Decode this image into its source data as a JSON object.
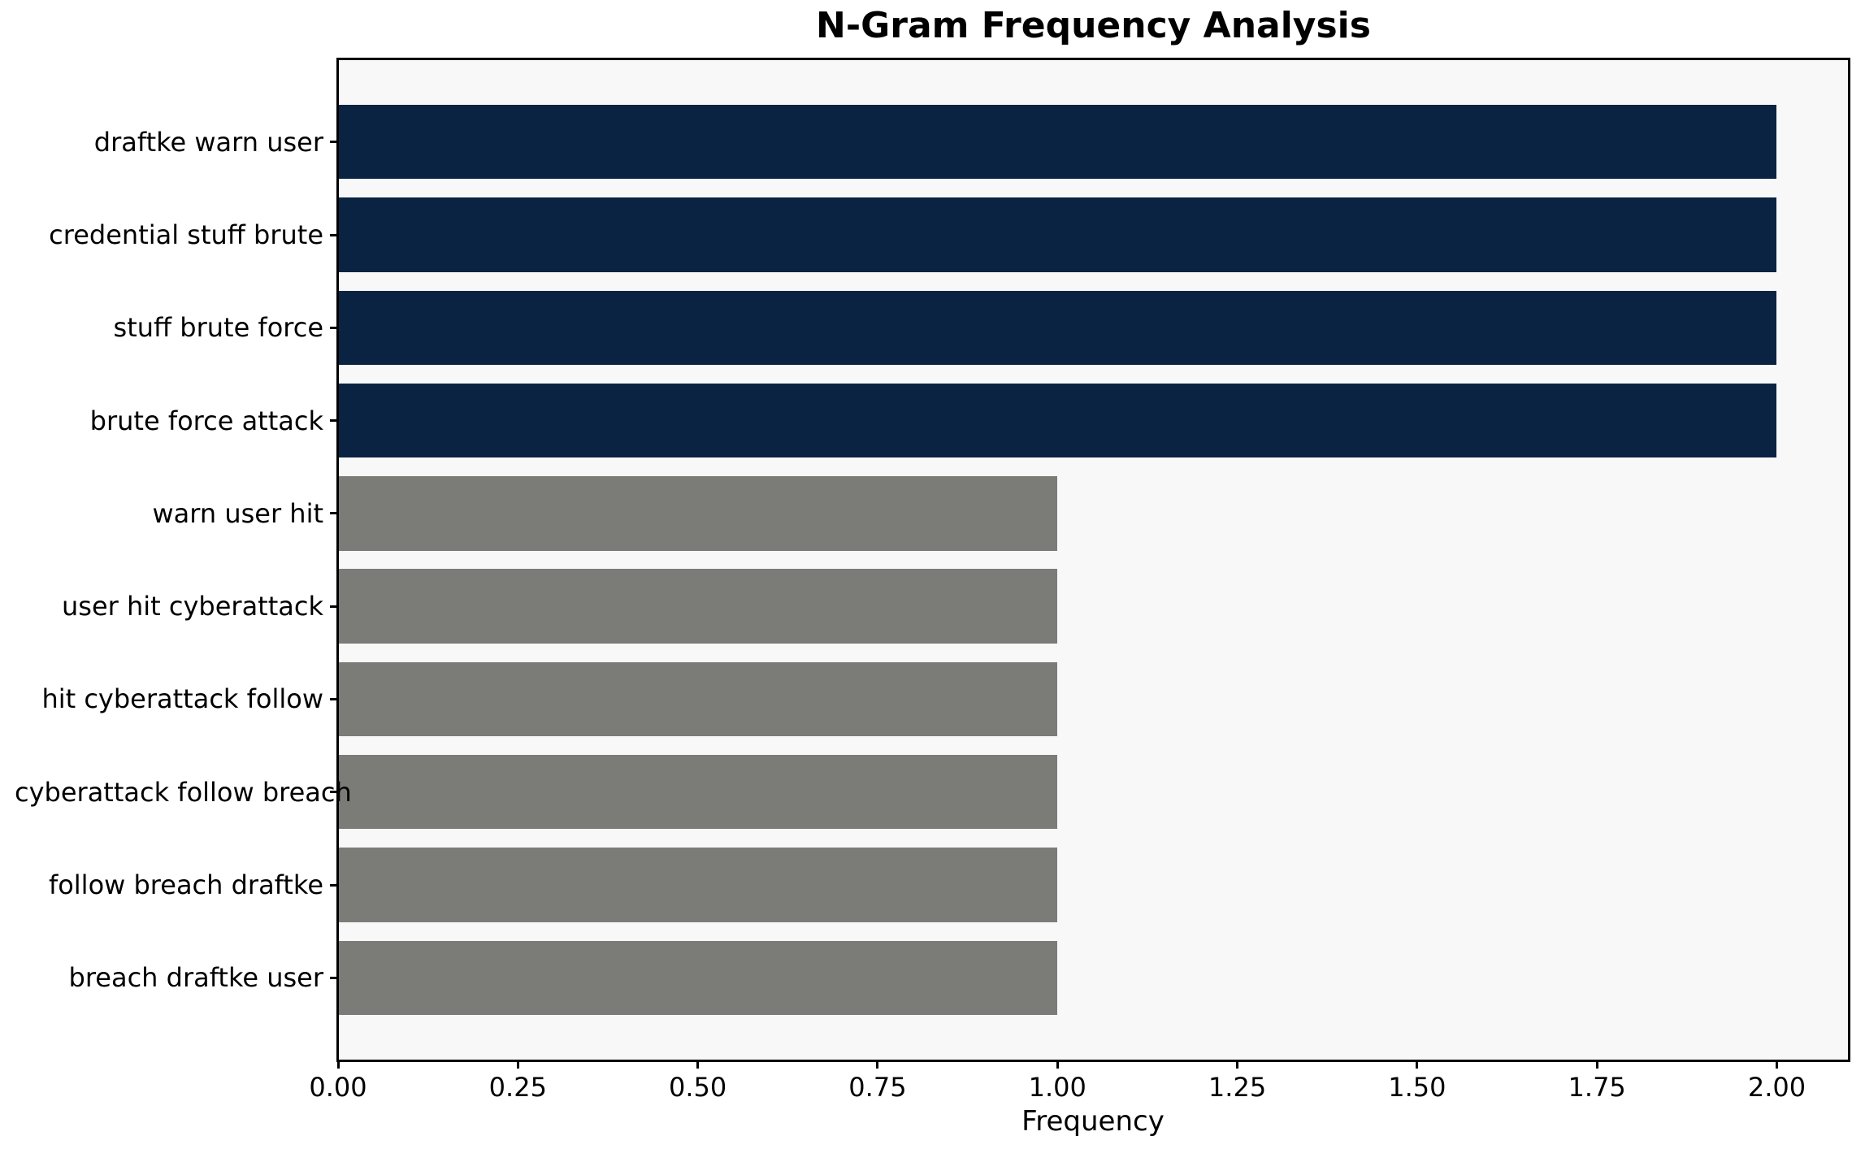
{
  "chart_data": {
    "type": "bar",
    "orientation": "horizontal",
    "title": "N-Gram Frequency Analysis",
    "xlabel": "Frequency",
    "ylabel": "",
    "categories": [
      "draftke warn user",
      "credential stuff brute",
      "stuff brute force",
      "brute force attack",
      "warn user hit",
      "user hit cyberattack",
      "hit cyberattack follow",
      "cyberattack follow breach",
      "follow breach draftke",
      "breach draftke user"
    ],
    "values": [
      2,
      2,
      2,
      2,
      1,
      1,
      1,
      1,
      1,
      1
    ],
    "bar_colors": [
      "#0a2342",
      "#0a2342",
      "#0a2342",
      "#0a2342",
      "#7b7b78",
      "#7b7b78",
      "#7b7b78",
      "#7b7b78",
      "#7b7b78",
      "#7b7b78"
    ],
    "x_ticks": [
      0,
      0.25,
      0.5,
      0.75,
      1.0,
      1.25,
      1.5,
      1.75,
      2.0
    ],
    "x_tick_labels": [
      "0.00",
      "0.25",
      "0.50",
      "0.75",
      "1.00",
      "1.25",
      "1.50",
      "1.75",
      "2.00"
    ],
    "xlim": [
      0,
      2.1
    ],
    "ylim": [
      -0.89,
      9.89
    ],
    "bar_height": 0.8,
    "grid": false,
    "legend": "none",
    "colors": {
      "highlight_bar": "#0a2342",
      "default_bar": "#7b7b78",
      "plot_background": "#f8f8f9",
      "figure_background": "#ffffff",
      "spine": "#000000",
      "text": "#000000"
    }
  }
}
